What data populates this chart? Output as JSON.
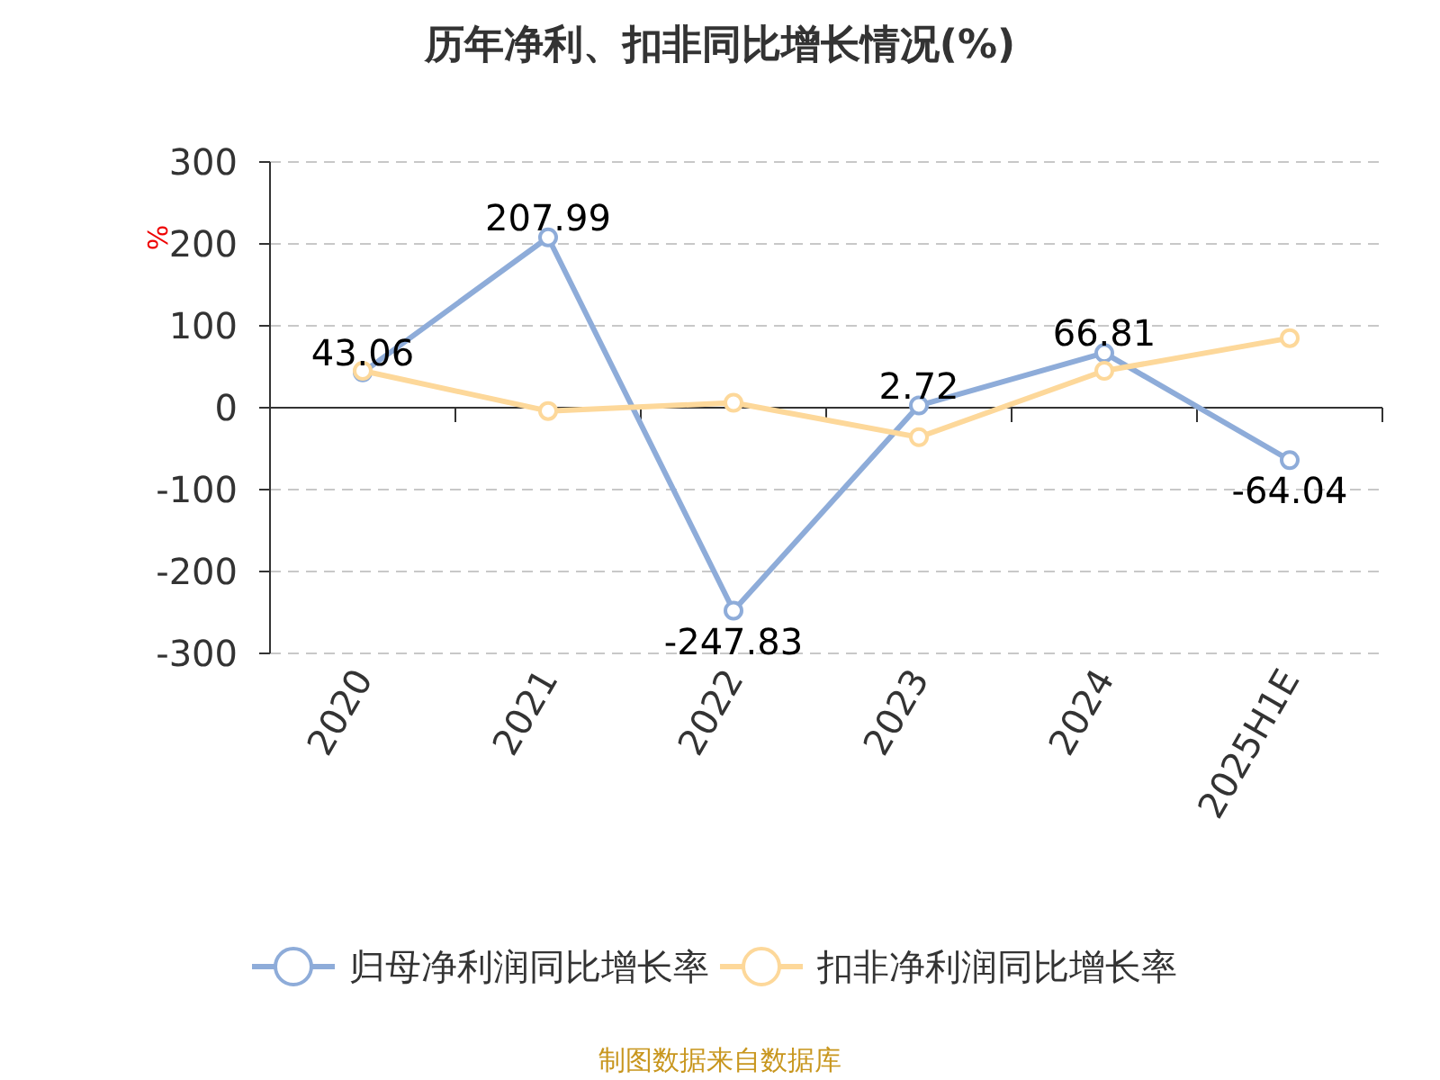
{
  "chart_data": {
    "type": "line",
    "title": "历年净利、扣非同比增长情况(%)",
    "ylabel": "%",
    "categories": [
      "2020",
      "2021",
      "2022",
      "2023",
      "2024",
      "2025H1E"
    ],
    "series": [
      {
        "name": "归母净利润同比增长率",
        "color": "#8eacd9",
        "values": [
          43.06,
          207.99,
          -247.83,
          2.72,
          66.81,
          -64.04
        ],
        "value_labels": [
          "43.06",
          "207.99",
          "-247.83",
          "2.72",
          "66.81",
          "-64.04"
        ]
      },
      {
        "name": "扣非净利润同比增长率",
        "color": "#fdd89a",
        "values": [
          45,
          -4,
          6,
          -36,
          45,
          85
        ]
      }
    ],
    "ylim": [
      -300,
      300
    ],
    "yticks": [
      -300,
      -200,
      -100,
      0,
      100,
      200,
      300
    ],
    "grid": "y",
    "legend": "bottom",
    "marker": "circle",
    "line_style": "solid",
    "annotations": [
      "制图数据来自数据库"
    ]
  }
}
